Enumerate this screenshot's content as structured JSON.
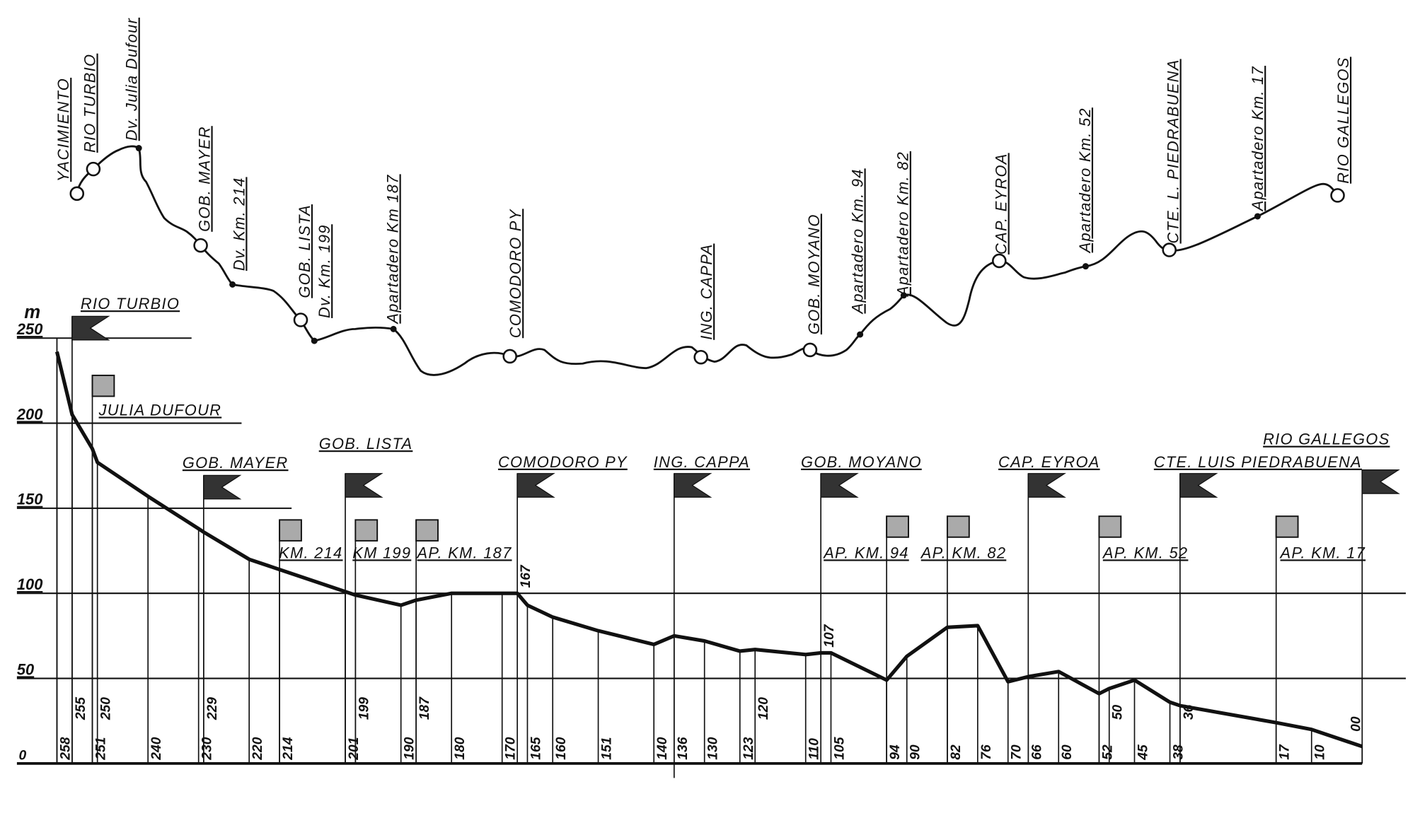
{
  "route_map": {
    "stations": [
      {
        "name": "YACIMIENTO",
        "marker": "station"
      },
      {
        "name": "RIO TURBIO",
        "marker": "station"
      },
      {
        "name": "Dv. Julia Dufour",
        "marker": "stop"
      },
      {
        "name": "GOB. MAYER",
        "marker": "station"
      },
      {
        "name": "Dv. Km. 214",
        "marker": "stop"
      },
      {
        "name": "GOB. LISTA",
        "marker": "station"
      },
      {
        "name": "Dv. Km. 199",
        "marker": "stop"
      },
      {
        "name": "Apartadero Km 187",
        "marker": "stop"
      },
      {
        "name": "COMODORO PY",
        "marker": "station"
      },
      {
        "name": "ING. CAPPA",
        "marker": "station"
      },
      {
        "name": "GOB. MOYANO",
        "marker": "station"
      },
      {
        "name": "Apartadero Km. 94",
        "marker": "stop"
      },
      {
        "name": "Apartadero Km. 82",
        "marker": "stop"
      },
      {
        "name": "CAP. EYROA",
        "marker": "station"
      },
      {
        "name": "Apartadero Km. 52",
        "marker": "stop"
      },
      {
        "name": "CTE. L. PIEDRABUENA",
        "marker": "station"
      },
      {
        "name": "Apartadero Km. 17",
        "marker": "stop"
      },
      {
        "name": "RIO GALLEGOS",
        "marker": "station"
      }
    ]
  },
  "chart_data": {
    "type": "line",
    "title": "",
    "xlabel": "",
    "ylabel": "m",
    "ylim": [
      0,
      250
    ],
    "xlim": [
      258,
      0
    ],
    "yticks": [
      "0",
      "50",
      "100",
      "150",
      "200",
      "250"
    ],
    "grid": true,
    "x": [
      258,
      255,
      251,
      250,
      240,
      230,
      229,
      220,
      214,
      201,
      199,
      190,
      187,
      180,
      170,
      167,
      165,
      160,
      151,
      140,
      136,
      130,
      123,
      120,
      110,
      107,
      105,
      94,
      90,
      82,
      76,
      70,
      66,
      60,
      52,
      50,
      45,
      38,
      36,
      17,
      10,
      0
    ],
    "y": [
      242,
      205,
      185,
      177,
      157,
      138,
      136,
      120,
      114,
      101,
      99,
      93,
      96,
      100,
      100,
      100,
      93,
      86,
      78,
      70,
      75,
      72,
      66,
      67,
      64,
      65,
      65,
      49,
      63,
      80,
      81,
      48,
      51,
      54,
      41,
      44,
      49,
      36,
      34,
      24,
      20,
      10
    ],
    "xtick_labels": [
      "258",
      "255",
      "251",
      "250",
      "240",
      "230",
      "229",
      "220",
      "214",
      "201",
      "199",
      "190",
      "187",
      "180",
      "170",
      "165",
      "160",
      "151",
      "140",
      "136",
      "130",
      "123",
      "120",
      "110",
      "105",
      "94",
      "90",
      "82",
      "76",
      "70",
      "66",
      "60",
      "52",
      "50",
      "45",
      "38",
      "36",
      "17",
      "10",
      "00"
    ],
    "annotations": [
      {
        "km": 167,
        "text": "167"
      },
      {
        "km": 107,
        "text": "107"
      }
    ],
    "stations": [
      {
        "km": 255,
        "name": "RIO TURBIO",
        "type": "station"
      },
      {
        "km": 251,
        "name": "JULIA DUFOUR",
        "type": "halt"
      },
      {
        "km": 229,
        "name": "GOB. MAYER",
        "type": "station"
      },
      {
        "km": 214,
        "name": "KM. 214",
        "type": "halt"
      },
      {
        "km": 201,
        "name": "GOB. LISTA",
        "type": "station"
      },
      {
        "km": 199,
        "name": "KM 199",
        "type": "halt"
      },
      {
        "km": 187,
        "name": "AP. KM. 187",
        "type": "halt"
      },
      {
        "km": 167,
        "name": "COMODORO PY",
        "type": "station"
      },
      {
        "km": 136,
        "name": "ING. CAPPA",
        "type": "station"
      },
      {
        "km": 107,
        "name": "GOB. MOYANO",
        "type": "station"
      },
      {
        "km": 94,
        "name": "AP. KM. 94",
        "type": "halt"
      },
      {
        "km": 82,
        "name": "AP. KM. 82",
        "type": "halt"
      },
      {
        "km": 66,
        "name": "CAP. EYROA",
        "type": "station"
      },
      {
        "km": 52,
        "name": "AP. KM. 52",
        "type": "halt"
      },
      {
        "km": 36,
        "name": "CTE. LUIS PIEDRABUENA",
        "type": "station"
      },
      {
        "km": 17,
        "name": "AP. KM. 17",
        "type": "halt"
      },
      {
        "km": 0,
        "name": "RIO GALLEGOS",
        "type": "station"
      }
    ],
    "colors": {
      "line": "#111111",
      "station_flag": "#333333",
      "halt_flag": "#aaaaaa"
    }
  }
}
